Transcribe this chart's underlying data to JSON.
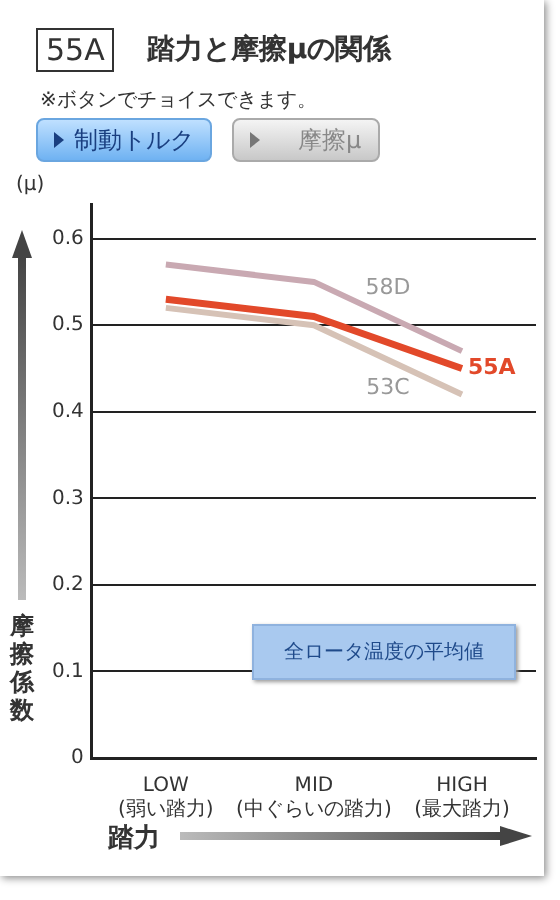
{
  "chart_data": {
    "type": "line",
    "title": "踏力と摩擦μの関係",
    "subtitle": "※ボタンでチョイスできます。",
    "xlabel": "踏力",
    "ylabel": "摩擦係数",
    "annotations": [
      "55A",
      "制動トルク",
      "摩擦μ",
      "(μ)",
      "全ロータ温度の平均値"
    ],
    "categories": [
      "LOW\n(弱い踏力)",
      "MID\n(中ぐらいの踏力)",
      "HIGH\n(最大踏力)"
    ],
    "series": [
      {
        "name": "58D",
        "color": "#c9a9b2",
        "values": [
          0.57,
          0.55,
          0.47
        ]
      },
      {
        "name": "55A",
        "color": "#e2492a",
        "values": [
          0.53,
          0.51,
          0.45
        ]
      },
      {
        "name": "53C",
        "color": "#d6c2b6",
        "values": [
          0.52,
          0.5,
          0.42
        ]
      }
    ],
    "ylim": [
      0,
      0.64
    ],
    "yticks": [
      0,
      0.1,
      0.2,
      0.3,
      0.4,
      0.5,
      0.6
    ],
    "grid": "y",
    "legend": false,
    "marker": "none",
    "line_style": "solid"
  }
}
